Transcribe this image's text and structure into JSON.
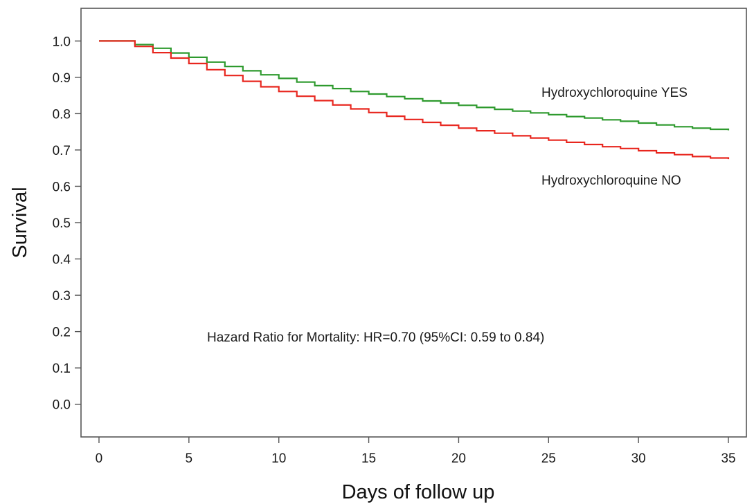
{
  "chart_data": {
    "type": "line",
    "title": "",
    "xlabel": "Days of follow up",
    "ylabel": "Survival",
    "xlim": [
      -1,
      36
    ],
    "ylim": [
      -0.09,
      1.09
    ],
    "xticks": [
      0,
      5,
      10,
      15,
      20,
      25,
      30,
      35
    ],
    "yticks": [
      0.0,
      0.1,
      0.2,
      0.3,
      0.4,
      0.5,
      0.6,
      0.7,
      0.8,
      0.9,
      1.0
    ],
    "ytick_labels": [
      "0.0",
      "0.1",
      "0.2",
      "0.3",
      "0.4",
      "0.5",
      "0.6",
      "0.7",
      "0.8",
      "0.9",
      "1.0"
    ],
    "grid": false,
    "step": true,
    "series": [
      {
        "name": "Hydroxychloroquine YES",
        "color": "#2e9a2e",
        "x": [
          0,
          2,
          3,
          4,
          5,
          6,
          7,
          8,
          9,
          10,
          11,
          12,
          13,
          14,
          15,
          16,
          17,
          18,
          19,
          20,
          21,
          22,
          23,
          24,
          25,
          26,
          27,
          28,
          29,
          30,
          31,
          32,
          33,
          34,
          35
        ],
        "y": [
          1.0,
          0.99,
          0.98,
          0.967,
          0.955,
          0.942,
          0.93,
          0.918,
          0.907,
          0.897,
          0.887,
          0.877,
          0.869,
          0.861,
          0.854,
          0.847,
          0.841,
          0.835,
          0.829,
          0.823,
          0.817,
          0.812,
          0.807,
          0.802,
          0.797,
          0.792,
          0.788,
          0.783,
          0.779,
          0.774,
          0.769,
          0.764,
          0.76,
          0.757,
          0.754
        ]
      },
      {
        "name": "Hydroxychloroquine NO",
        "color": "#e8261e",
        "x": [
          0,
          2,
          3,
          4,
          5,
          6,
          7,
          8,
          9,
          10,
          11,
          12,
          13,
          14,
          15,
          16,
          17,
          18,
          19,
          20,
          21,
          22,
          23,
          24,
          25,
          26,
          27,
          28,
          29,
          30,
          31,
          32,
          33,
          34,
          35
        ],
        "y": [
          1.0,
          0.985,
          0.968,
          0.953,
          0.938,
          0.921,
          0.905,
          0.889,
          0.874,
          0.861,
          0.848,
          0.836,
          0.824,
          0.813,
          0.803,
          0.793,
          0.784,
          0.776,
          0.768,
          0.76,
          0.753,
          0.746,
          0.739,
          0.733,
          0.727,
          0.721,
          0.715,
          0.709,
          0.704,
          0.698,
          0.692,
          0.687,
          0.682,
          0.678,
          0.675
        ]
      }
    ],
    "labels": {
      "yes": "Hydroxychloroquine YES",
      "no": "Hydroxychloroquine NO"
    },
    "annotation": "Hazard Ratio for Mortality: HR=0.70 (95%CI: 0.59 to 0.84)"
  }
}
